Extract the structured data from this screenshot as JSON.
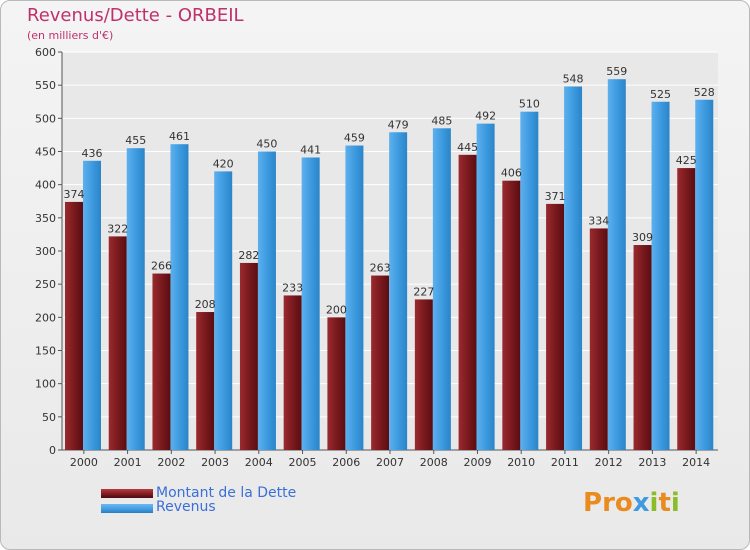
{
  "title": "Revenus/Dette - ORBEIL",
  "subtitle": "(en milliers d'€)",
  "legend": [
    {
      "label": "Montant de la Dette",
      "color": "#7a1a1e"
    },
    {
      "label": "Revenus",
      "color": "#3e9be0"
    }
  ],
  "logo": {
    "letters": [
      "P",
      "r",
      "o",
      "x",
      "i",
      "t",
      "i"
    ],
    "colors": [
      "#e98b1e",
      "#e98b1e",
      "#e98b1e",
      "#3e9be0",
      "#8bbd2a",
      "#e98b1e",
      "#8bbd2a"
    ]
  },
  "colors": {
    "debt": "#7a1a1e",
    "revenue": "#3e9be0",
    "title": "#c0306b",
    "grid": "#ffffff"
  },
  "chart_data": {
    "type": "bar",
    "title": "Revenus/Dette - ORBEIL",
    "subtitle": "(en milliers d'€)",
    "categories": [
      "2000",
      "2001",
      "2002",
      "2003",
      "2004",
      "2005",
      "2006",
      "2007",
      "2008",
      "2009",
      "2010",
      "2011",
      "2012",
      "2013",
      "2014"
    ],
    "series": [
      {
        "name": "Montant de la Dette",
        "values": [
          374,
          322,
          266,
          208,
          282,
          233,
          200,
          263,
          227,
          445,
          406,
          371,
          334,
          309,
          425
        ]
      },
      {
        "name": "Revenus",
        "values": [
          436,
          455,
          461,
          420,
          450,
          441,
          459,
          479,
          485,
          492,
          510,
          548,
          559,
          525,
          528
        ]
      }
    ],
    "ylim": [
      0,
      600
    ],
    "yticks": [
      0,
      50,
      100,
      150,
      200,
      250,
      300,
      350,
      400,
      450,
      500,
      550,
      600
    ],
    "grid": true,
    "legend_position": "bottom-left"
  }
}
